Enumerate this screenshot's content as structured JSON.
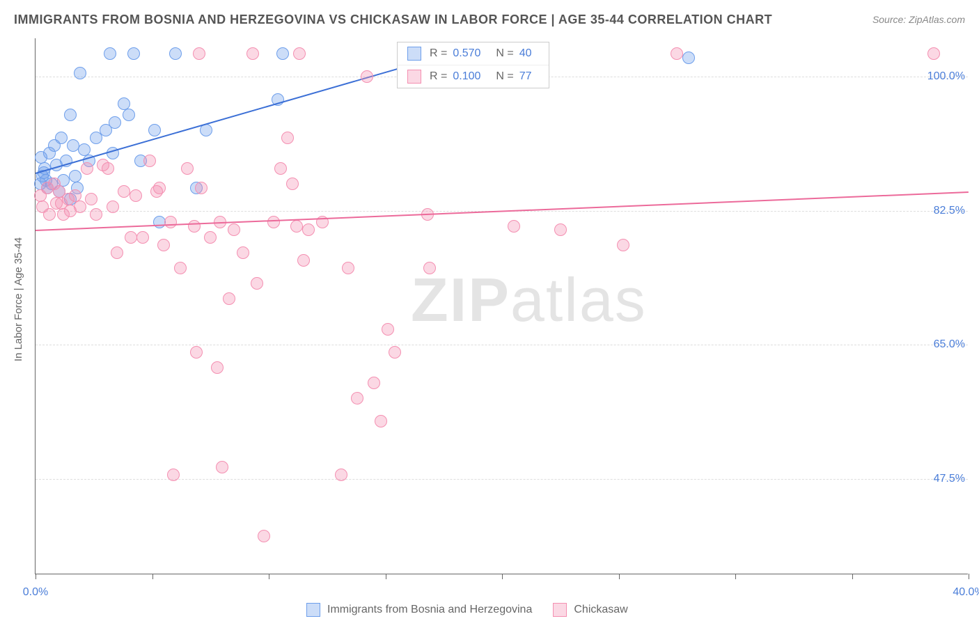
{
  "title": "IMMIGRANTS FROM BOSNIA AND HERZEGOVINA VS CHICKASAW IN LABOR FORCE | AGE 35-44 CORRELATION CHART",
  "source": "Source: ZipAtlas.com",
  "y_axis_label": "In Labor Force | Age 35-44",
  "watermark": {
    "bold": "ZIP",
    "rest": "atlas"
  },
  "chart": {
    "type": "scatter",
    "background_color": "#ffffff",
    "grid_color": "#dddddd",
    "axis_color": "#666666",
    "tick_label_color": "#4a7dd8",
    "xlim": [
      0,
      40
    ],
    "ylim": [
      35,
      105
    ],
    "x_ticks": [
      0,
      5,
      10,
      15,
      20,
      25,
      30,
      35,
      40
    ],
    "x_tick_labels": {
      "0": "0.0%",
      "40": "40.0%"
    },
    "y_grid": [
      47.5,
      65.0,
      82.5,
      100.0
    ],
    "y_tick_labels": [
      "47.5%",
      "65.0%",
      "82.5%",
      "100.0%"
    ],
    "marker_radius": 9,
    "marker_stroke_width": 1.5,
    "trend_line_width": 2,
    "series": [
      {
        "name": "Immigrants from Bosnia and Herzegovina",
        "fill": "rgba(109,158,235,0.35)",
        "stroke": "#6d9eeb",
        "line_color": "#3b6fd6",
        "R": "0.570",
        "N": "40",
        "trend": {
          "x0": 0,
          "y0": 87.5,
          "x1": 16.5,
          "y1": 102
        },
        "points": [
          [
            0.3,
            87
          ],
          [
            0.4,
            88
          ],
          [
            0.5,
            85.5
          ],
          [
            0.6,
            90
          ],
          [
            0.7,
            86
          ],
          [
            0.8,
            91
          ],
          [
            0.9,
            88.5
          ],
          [
            1.0,
            85
          ],
          [
            1.1,
            92
          ],
          [
            1.2,
            86.5
          ],
          [
            1.3,
            89
          ],
          [
            1.5,
            84
          ],
          [
            1.7,
            87
          ],
          [
            1.8,
            85.5
          ],
          [
            0.2,
            86
          ],
          [
            0.25,
            89.5
          ],
          [
            0.35,
            87.5
          ],
          [
            0.45,
            86.5
          ],
          [
            1.5,
            95
          ],
          [
            1.9,
            100.5
          ],
          [
            1.6,
            91
          ],
          [
            2.1,
            90.5
          ],
          [
            2.3,
            89
          ],
          [
            2.6,
            92
          ],
          [
            3.2,
            103
          ],
          [
            3.0,
            93
          ],
          [
            3.3,
            90
          ],
          [
            3.4,
            94
          ],
          [
            3.8,
            96.5
          ],
          [
            4.0,
            95
          ],
          [
            4.5,
            89
          ],
          [
            4.2,
            103
          ],
          [
            5.1,
            93
          ],
          [
            5.3,
            81
          ],
          [
            6.0,
            103
          ],
          [
            6.9,
            85.5
          ],
          [
            7.3,
            93
          ],
          [
            10.4,
            97
          ],
          [
            10.6,
            103
          ],
          [
            15.8,
            103
          ],
          [
            28.0,
            102.5
          ]
        ]
      },
      {
        "name": "Chickasaw",
        "fill": "rgba(244,143,177,0.35)",
        "stroke": "#f48fb1",
        "line_color": "#ec6a9a",
        "R": "0.100",
        "N": "77",
        "trend": {
          "x0": 0,
          "y0": 80,
          "x1": 40,
          "y1": 85
        },
        "points": [
          [
            0.2,
            84.5
          ],
          [
            0.3,
            83
          ],
          [
            0.5,
            85.5
          ],
          [
            0.6,
            82
          ],
          [
            0.8,
            86
          ],
          [
            0.9,
            83.5
          ],
          [
            1.0,
            85
          ],
          [
            1.1,
            83.5
          ],
          [
            1.2,
            82
          ],
          [
            1.4,
            84
          ],
          [
            1.5,
            82.5
          ],
          [
            1.7,
            84.5
          ],
          [
            1.9,
            83
          ],
          [
            2.2,
            88
          ],
          [
            2.4,
            84
          ],
          [
            2.6,
            82
          ],
          [
            2.9,
            88.5
          ],
          [
            3.1,
            88
          ],
          [
            3.3,
            83
          ],
          [
            3.5,
            77
          ],
          [
            3.8,
            85
          ],
          [
            4.1,
            79
          ],
          [
            4.3,
            84.5
          ],
          [
            4.6,
            79
          ],
          [
            4.9,
            89
          ],
          [
            5.2,
            85
          ],
          [
            5.3,
            85.5
          ],
          [
            5.5,
            78
          ],
          [
            5.8,
            81
          ],
          [
            5.9,
            48
          ],
          [
            6.2,
            75
          ],
          [
            6.5,
            88
          ],
          [
            6.8,
            80.5
          ],
          [
            6.9,
            64
          ],
          [
            7.0,
            103
          ],
          [
            7.1,
            85.5
          ],
          [
            7.5,
            79
          ],
          [
            7.8,
            62
          ],
          [
            7.9,
            81
          ],
          [
            8.0,
            49
          ],
          [
            8.3,
            71
          ],
          [
            8.5,
            80
          ],
          [
            8.9,
            77
          ],
          [
            9.3,
            103
          ],
          [
            9.5,
            73
          ],
          [
            9.8,
            40
          ],
          [
            10.2,
            81
          ],
          [
            10.5,
            88
          ],
          [
            10.8,
            92
          ],
          [
            11.0,
            86
          ],
          [
            11.2,
            80.5
          ],
          [
            11.3,
            103
          ],
          [
            11.5,
            76
          ],
          [
            11.7,
            80
          ],
          [
            12.3,
            81
          ],
          [
            13.1,
            48
          ],
          [
            13.4,
            75
          ],
          [
            13.8,
            58
          ],
          [
            14.2,
            100
          ],
          [
            14.5,
            60
          ],
          [
            14.8,
            55
          ],
          [
            15.1,
            67
          ],
          [
            15.4,
            64
          ],
          [
            16.8,
            82
          ],
          [
            16.9,
            75
          ],
          [
            18.5,
            102.5
          ],
          [
            18.7,
            103
          ],
          [
            19.5,
            103
          ],
          [
            20.0,
            103
          ],
          [
            20.5,
            80.5
          ],
          [
            22.5,
            80
          ],
          [
            25.2,
            78
          ],
          [
            27.5,
            103
          ],
          [
            38.5,
            103
          ]
        ]
      }
    ]
  },
  "legend_top": {
    "r_label": "R =",
    "n_label": "N ="
  },
  "legend_bottom": {
    "items": [
      "Immigrants from Bosnia and Herzegovina",
      "Chickasaw"
    ]
  }
}
